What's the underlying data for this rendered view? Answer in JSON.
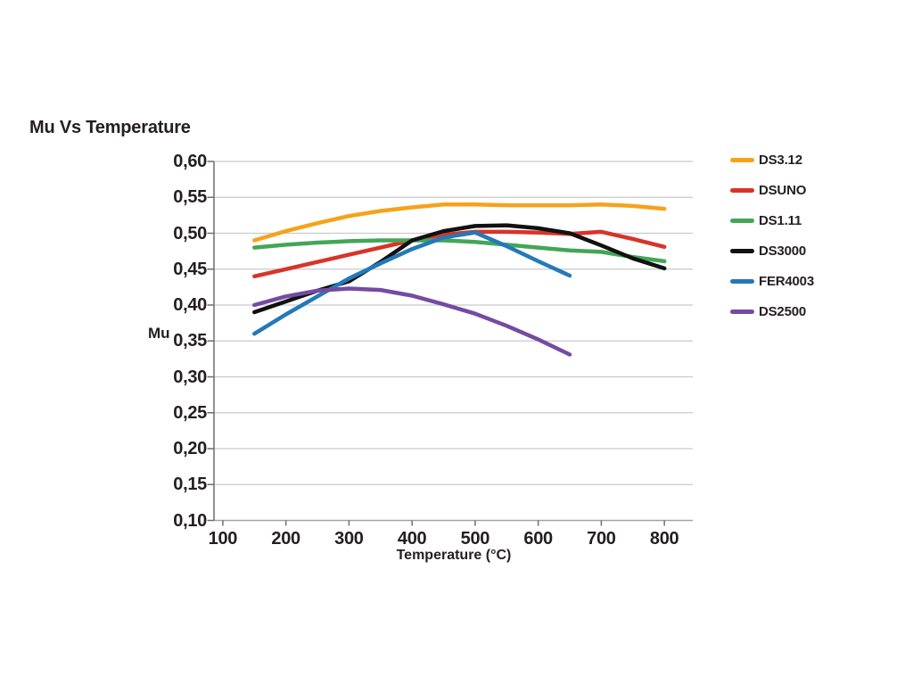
{
  "page": {
    "background": "#ffffff",
    "text_color": "#231f20",
    "grid_color": "#c9cacc",
    "axis_color": "#6d6e71",
    "baseline_color": "#a0a2a5"
  },
  "chart_data": {
    "type": "line",
    "title": "Mu Vs Temperature",
    "xlabel": "Temperature (°C)",
    "ylabel": "Mu",
    "xlim": [
      86,
      845
    ],
    "ylim": [
      0.1,
      0.6
    ],
    "grid": "horizontal",
    "legend_position": "right",
    "x_ticks": [
      100,
      200,
      300,
      400,
      500,
      600,
      700,
      800
    ],
    "x_tick_labels": [
      "100",
      "200",
      "300",
      "400",
      "500",
      "600",
      "700",
      "800"
    ],
    "y_ticks": [
      0.1,
      0.15,
      0.2,
      0.25,
      0.3,
      0.35,
      0.4,
      0.45,
      0.5,
      0.55,
      0.6
    ],
    "y_tick_labels": [
      "0,10",
      "0,15",
      "0,20",
      "0,25",
      "0,30",
      "0,35",
      "0,40",
      "0,45",
      "0,50",
      "0,55",
      "0,60"
    ],
    "series": [
      {
        "name": "DS3.12",
        "color": "#f5a31b",
        "x": [
          150,
          200,
          250,
          300,
          350,
          400,
          450,
          500,
          550,
          600,
          650,
          700,
          750,
          800
        ],
        "y": [
          0.49,
          0.503,
          0.514,
          0.524,
          0.531,
          0.536,
          0.54,
          0.54,
          0.539,
          0.539,
          0.539,
          0.54,
          0.538,
          0.534
        ]
      },
      {
        "name": "DSUNO",
        "color": "#d8342a",
        "x": [
          150,
          200,
          250,
          300,
          350,
          400,
          450,
          500,
          550,
          600,
          650,
          700,
          750,
          800
        ],
        "y": [
          0.44,
          0.45,
          0.46,
          0.47,
          0.48,
          0.49,
          0.498,
          0.502,
          0.502,
          0.501,
          0.499,
          0.502,
          0.492,
          0.481
        ]
      },
      {
        "name": "DS1.11",
        "color": "#43a656",
        "x": [
          150,
          200,
          250,
          300,
          350,
          400,
          450,
          500,
          550,
          600,
          650,
          700,
          750,
          800
        ],
        "y": [
          0.48,
          0.484,
          0.487,
          0.489,
          0.49,
          0.49,
          0.49,
          0.488,
          0.484,
          0.48,
          0.476,
          0.474,
          0.467,
          0.461
        ]
      },
      {
        "name": "DS3000",
        "color": "#111111",
        "x": [
          150,
          200,
          250,
          300,
          350,
          400,
          450,
          500,
          550,
          600,
          650,
          700,
          750,
          800
        ],
        "y": [
          0.39,
          0.405,
          0.42,
          0.433,
          0.46,
          0.49,
          0.503,
          0.51,
          0.511,
          0.507,
          0.5,
          0.483,
          0.465,
          0.451
        ]
      },
      {
        "name": "FER4003",
        "color": "#2379ba",
        "x": [
          150,
          200,
          250,
          300,
          350,
          400,
          450,
          500,
          550,
          600,
          650
        ],
        "y": [
          0.36,
          0.387,
          0.412,
          0.437,
          0.458,
          0.478,
          0.494,
          0.501,
          0.482,
          0.461,
          0.441
        ]
      },
      {
        "name": "DS2500",
        "color": "#744ba2",
        "x": [
          150,
          200,
          250,
          300,
          350,
          400,
          450,
          500,
          550,
          600,
          650
        ],
        "y": [
          0.4,
          0.412,
          0.42,
          0.423,
          0.421,
          0.413,
          0.401,
          0.388,
          0.371,
          0.352,
          0.331
        ]
      }
    ]
  }
}
